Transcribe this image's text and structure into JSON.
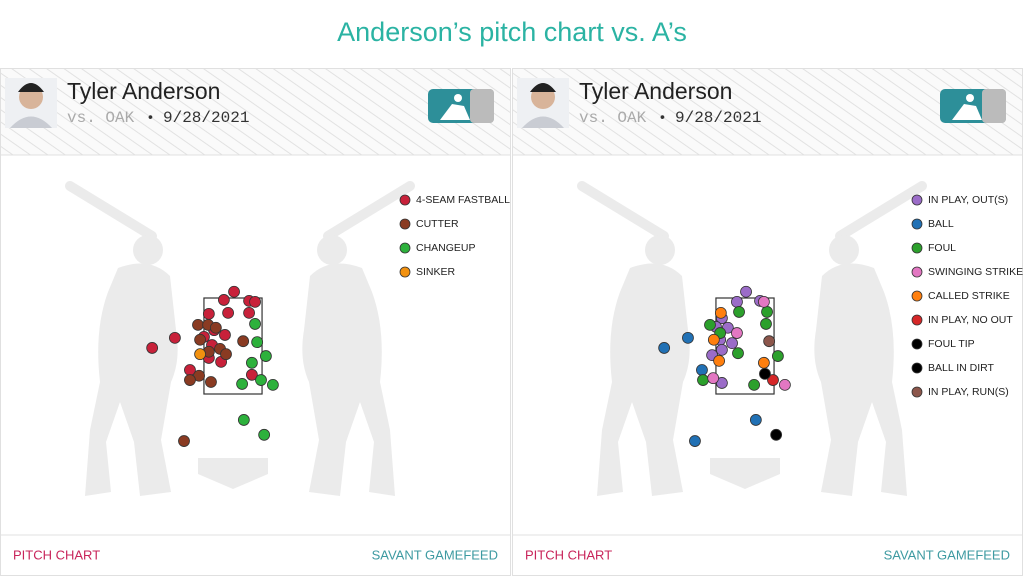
{
  "title": "Anderson’s pitch chart vs. A’s",
  "panels": [
    {
      "name": "Tyler Anderson",
      "opponent": "vs. OAK",
      "separator": "•",
      "date": "9/28/2021",
      "footer_left": "PITCH CHART",
      "footer_right": "SAVANT GAMEFEED"
    },
    {
      "name": "Tyler Anderson",
      "opponent": "vs. OAK",
      "separator": "•",
      "date": "9/28/2021",
      "footer_left": "PITCH CHART",
      "footer_right": "SAVANT GAMEFEED"
    }
  ],
  "chart_data": [
    {
      "type": "scatter",
      "xlim": [
        -3,
        3
      ],
      "ylim": [
        0,
        5
      ],
      "strike_zone": {
        "x": [
          -0.83,
          0.83
        ],
        "z": [
          1.5,
          3.5
        ]
      },
      "series": [
        {
          "name": "4-SEAM FASTBALL",
          "color": "#c8213a",
          "x": [
            0.03,
            -0.26,
            0.46,
            0.63,
            -0.69,
            -0.14,
            0.46,
            -0.54,
            -0.83,
            -0.23,
            -0.6,
            -0.69,
            -0.34,
            -2.31,
            -1.66,
            -1.23,
            0.54
          ],
          "values": [
            3.63,
            3.46,
            3.44,
            3.42,
            3.17,
            3.19,
            3.19,
            2.83,
            2.69,
            2.73,
            2.52,
            2.25,
            2.17,
            2.46,
            2.67,
            2.0,
            1.9
          ]
        },
        {
          "name": "CUTTER",
          "color": "#8a3b22",
          "x": [
            -1.0,
            -0.71,
            -0.49,
            -0.94,
            -0.37,
            -0.69,
            -0.2,
            -0.97,
            -1.23,
            -0.63,
            -1.4,
            0.29
          ],
          "values": [
            2.94,
            2.94,
            2.88,
            2.63,
            2.44,
            2.38,
            2.33,
            1.88,
            1.79,
            1.75,
            0.52,
            2.6
          ]
        },
        {
          "name": "CHANGEUP",
          "color": "#2db13c",
          "x": [
            0.63,
            0.69,
            0.94,
            0.54,
            0.26,
            0.8,
            1.14,
            0.31,
            0.89
          ],
          "values": [
            2.96,
            2.58,
            2.29,
            2.15,
            1.71,
            1.79,
            1.69,
            0.96,
            0.65
          ]
        },
        {
          "name": "SINKER",
          "color": "#f2910f",
          "x": [
            -0.94
          ],
          "values": [
            2.33
          ]
        }
      ]
    },
    {
      "type": "scatter",
      "xlim": [
        -3,
        3
      ],
      "ylim": [
        0,
        5
      ],
      "strike_zone": {
        "x": [
          -0.83,
          0.83
        ],
        "z": [
          1.5,
          3.5
        ]
      },
      "series": [
        {
          "name": "IN PLAY, OUT(S)",
          "color": "#9b6cc8",
          "x": [
            0.03,
            -0.23,
            0.43,
            -0.66,
            -0.83,
            -0.49,
            -0.71,
            -0.37,
            -0.66,
            -0.94,
            -0.66
          ],
          "values": [
            3.63,
            3.42,
            3.44,
            3.08,
            2.9,
            2.88,
            2.63,
            2.56,
            2.42,
            2.31,
            1.73
          ]
        },
        {
          "name": "BALL",
          "color": "#2171b5",
          "x": [
            -2.31,
            -1.63,
            -1.23,
            0.31,
            -1.43
          ],
          "values": [
            2.46,
            2.67,
            2.0,
            0.96,
            0.52
          ]
        },
        {
          "name": "FOUL",
          "color": "#2ca02c",
          "x": [
            0.63,
            0.6,
            -0.17,
            -1.0,
            -0.71,
            -0.2,
            0.94,
            -1.2,
            0.26
          ],
          "values": [
            3.21,
            2.96,
            3.21,
            2.94,
            2.77,
            2.35,
            2.29,
            1.79,
            1.69
          ]
        },
        {
          "name": "SWINGING STRIKE",
          "color": "#e377c2",
          "x": [
            0.54,
            -0.23,
            -0.91,
            1.14
          ],
          "values": [
            3.42,
            2.77,
            1.83,
            1.69
          ]
        },
        {
          "name": "CALLED STRIKE",
          "color": "#ff7f0e",
          "x": [
            -0.69,
            -0.89,
            -0.74,
            0.54
          ],
          "values": [
            3.19,
            2.63,
            2.19,
            2.15
          ]
        },
        {
          "name": "IN PLAY, NO OUT",
          "color": "#d62728",
          "x": [
            0.8
          ],
          "values": [
            1.79
          ]
        },
        {
          "name": "FOUL TIP",
          "color": "#000000",
          "x": [
            0.57
          ],
          "values": [
            1.92
          ]
        },
        {
          "name": "BALL IN DIRT",
          "color": "#000000",
          "x": [
            0.89
          ],
          "values": [
            0.65
          ]
        },
        {
          "name": "IN PLAY, RUN(S)",
          "color": "#8c564b",
          "x": [
            0.69
          ],
          "values": [
            2.6
          ]
        }
      ]
    }
  ]
}
